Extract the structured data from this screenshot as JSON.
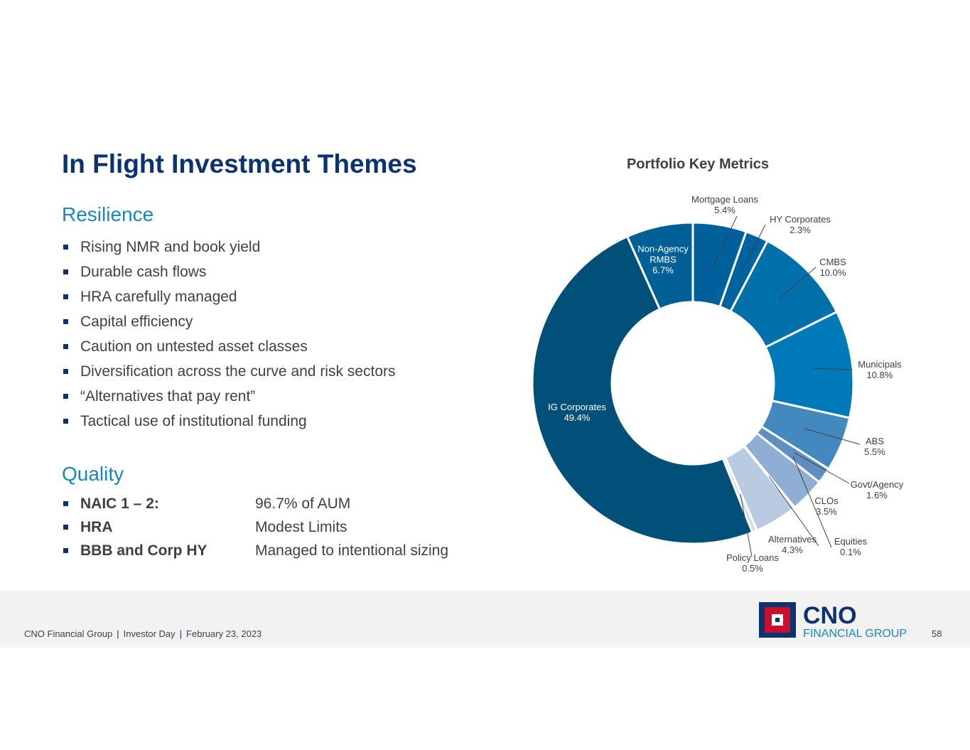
{
  "slide": {
    "title": "In Flight Investment Themes",
    "resilience": {
      "heading": "Resilience",
      "bullets": [
        "Rising NMR and book yield",
        "Durable cash flows",
        "HRA carefully managed",
        "Capital efficiency",
        "Caution on untested asset classes",
        "Diversification across the curve and risk sectors",
        "“Alternatives that pay rent”",
        "Tactical use of institutional funding"
      ]
    },
    "quality": {
      "heading": "Quality",
      "rows": [
        [
          "NAIC 1 – 2:",
          "96.7% of AUM"
        ],
        [
          "HRA",
          "Modest Limits"
        ],
        [
          "BBB and Corp HY",
          "Managed to intentional sizing"
        ]
      ]
    },
    "footer": {
      "company": "CNO Financial Group",
      "event": "Investor Day",
      "date": "February 23, 2023",
      "page": "58"
    },
    "logo": {
      "name": "CNO",
      "sub": "FINANCIAL GROUP"
    }
  },
  "chart_data": {
    "type": "donut",
    "title": "Portfolio Key Metrics",
    "categories": [
      "Mortgage Loans",
      "HY Corporates",
      "CMBS",
      "Municipals",
      "ABS",
      "Govt/Agency",
      "CLOs",
      "Equities",
      "Alternatives",
      "Policy Loans",
      "IG Corporates",
      "Non-Agency RMBS"
    ],
    "values": [
      5.4,
      2.3,
      10.0,
      10.8,
      5.5,
      1.6,
      3.5,
      0.1,
      4.3,
      0.5,
      49.4,
      6.7
    ],
    "value_labels": [
      "5.4%",
      "2.3%",
      "10.0%",
      "10.8%",
      "5.5%",
      "1.6%",
      "3.5%",
      "0.1%",
      "4.3%",
      "0.5%",
      "49.4%",
      "6.7%"
    ],
    "colors": [
      "#00609c",
      "#00639f",
      "#0070aa",
      "#0079b9",
      "#4389bf",
      "#5d8fc0",
      "#8eafd3",
      "#a9c3dd",
      "#b9cbe1",
      "#d2dcea",
      "#00507a",
      "#005f94"
    ]
  }
}
